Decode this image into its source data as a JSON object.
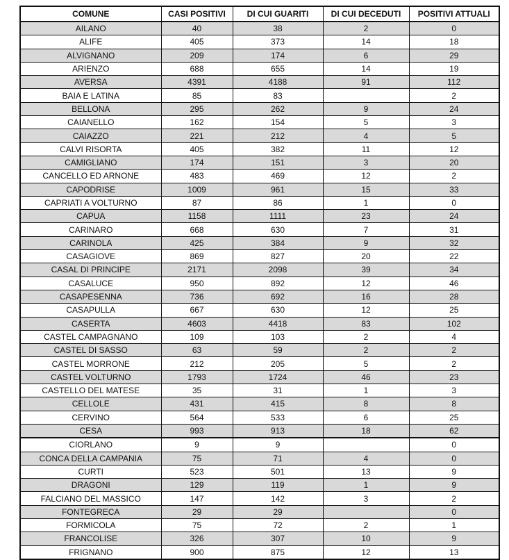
{
  "table": {
    "headers": [
      "COMUNE",
      "CASI POSITIVI",
      "DI CUI GUARITI",
      "DI CUI DECEDUTI",
      "POSITIVI ATTUALI"
    ],
    "shade_color": "#d9d9d9",
    "rows": [
      [
        "AILANO",
        "40",
        "38",
        "2",
        "0"
      ],
      [
        "ALIFE",
        "405",
        "373",
        "14",
        "18"
      ],
      [
        "ALVIGNANO",
        "209",
        "174",
        "6",
        "29"
      ],
      [
        "ARIENZO",
        "688",
        "655",
        "14",
        "19"
      ],
      [
        "AVERSA",
        "4391",
        "4188",
        "91",
        "112"
      ],
      [
        "BAIA E LATINA",
        "85",
        "83",
        "",
        "2"
      ],
      [
        "BELLONA",
        "295",
        "262",
        "9",
        "24"
      ],
      [
        "CAIANELLO",
        "162",
        "154",
        "5",
        "3"
      ],
      [
        "CAIAZZO",
        "221",
        "212",
        "4",
        "5"
      ],
      [
        "CALVI RISORTA",
        "405",
        "382",
        "11",
        "12"
      ],
      [
        "CAMIGLIANO",
        "174",
        "151",
        "3",
        "20"
      ],
      [
        "CANCELLO ED ARNONE",
        "483",
        "469",
        "12",
        "2"
      ],
      [
        "CAPODRISE",
        "1009",
        "961",
        "15",
        "33"
      ],
      [
        "CAPRIATI A VOLTURNO",
        "87",
        "86",
        "1",
        "0"
      ],
      [
        "CAPUA",
        "1158",
        "1111",
        "23",
        "24"
      ],
      [
        "CARINARO",
        "668",
        "630",
        "7",
        "31"
      ],
      [
        "CARINOLA",
        "425",
        "384",
        "9",
        "32"
      ],
      [
        "CASAGIOVE",
        "869",
        "827",
        "20",
        "22"
      ],
      [
        "CASAL DI PRINCIPE",
        "2171",
        "2098",
        "39",
        "34"
      ],
      [
        "CASALUCE",
        "950",
        "892",
        "12",
        "46"
      ],
      [
        "CASAPESENNA",
        "736",
        "692",
        "16",
        "28"
      ],
      [
        "CASAPULLA",
        "667",
        "630",
        "12",
        "25"
      ],
      [
        "CASERTA",
        "4603",
        "4418",
        "83",
        "102"
      ],
      [
        "CASTEL CAMPAGNANO",
        "109",
        "103",
        "2",
        "4"
      ],
      [
        "CASTEL DI SASSO",
        "63",
        "59",
        "2",
        "2"
      ],
      [
        "CASTEL MORRONE",
        "212",
        "205",
        "5",
        "2"
      ],
      [
        "CASTEL VOLTURNO",
        "1793",
        "1724",
        "46",
        "23"
      ],
      [
        "CASTELLO DEL MATESE",
        "35",
        "31",
        "1",
        "3"
      ],
      [
        "CELLOLE",
        "431",
        "415",
        "8",
        "8"
      ],
      [
        "CERVINO",
        "564",
        "533",
        "6",
        "25"
      ],
      [
        "CESA",
        "993",
        "913",
        "18",
        "62"
      ],
      [
        "CIORLANO",
        "9",
        "9",
        "",
        "0"
      ],
      [
        "CONCA DELLA CAMPANIA",
        "75",
        "71",
        "4",
        "0"
      ],
      [
        "CURTI",
        "523",
        "501",
        "13",
        "9"
      ],
      [
        "DRAGONI",
        "129",
        "119",
        "1",
        "9"
      ],
      [
        "FALCIANO DEL MASSICO",
        "147",
        "142",
        "3",
        "2"
      ],
      [
        "FONTEGRECA",
        "29",
        "29",
        "",
        "0"
      ],
      [
        "FORMICOLA",
        "75",
        "72",
        "2",
        "1"
      ],
      [
        "FRANCOLISE",
        "326",
        "307",
        "10",
        "9"
      ],
      [
        "FRIGNANO",
        "900",
        "875",
        "12",
        "13"
      ]
    ]
  }
}
